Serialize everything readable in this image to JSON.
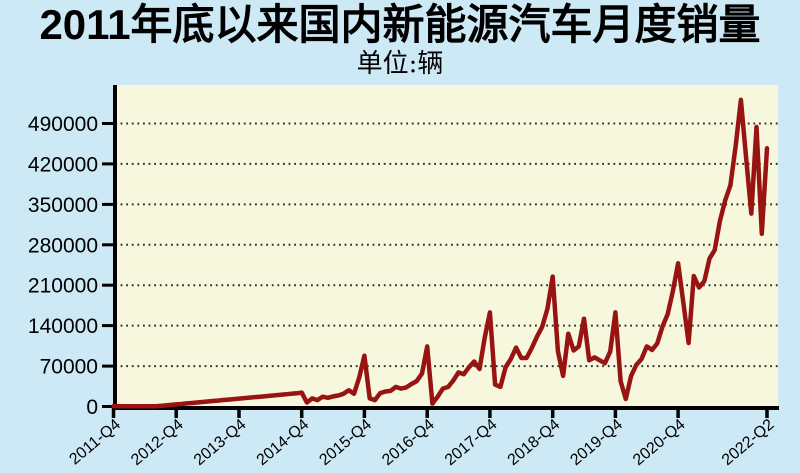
{
  "title": "2011年底以来国内新能源汽车月度销量",
  "subtitle": "单位:辆",
  "chart_data": {
    "type": "line",
    "title": "2011年底以来国内新能源汽车月度销量",
    "unit_label": "单位:辆",
    "x_start": "2011-12",
    "x_end": "2022-05",
    "monthly_values": [
      800,
      300,
      350,
      400,
      450,
      500,
      550,
      500,
      300,
      1100,
      1900,
      2800,
      3600,
      4400,
      5300,
      6100,
      7000,
      7800,
      8600,
      9500,
      10300,
      11200,
      12000,
      12800,
      13700,
      14500,
      15400,
      16200,
      17000,
      17900,
      18700,
      19600,
      20400,
      21200,
      22100,
      22900,
      24000,
      7000,
      14000,
      11000,
      17000,
      15000,
      17500,
      19000,
      22000,
      28000,
      22000,
      50000,
      88000,
      14000,
      11000,
      23000,
      26000,
      27000,
      34000,
      31000,
      33000,
      39000,
      44000,
      57000,
      104000,
      5000,
      17000,
      31000,
      34000,
      45000,
      59000,
      56000,
      68000,
      78000,
      65000,
      119000,
      163000,
      38000,
      34000,
      68000,
      82000,
      102000,
      84000,
      84000,
      101000,
      121000,
      138000,
      169000,
      225000,
      96000,
      53000,
      126000,
      97000,
      104000,
      152000,
      80000,
      85000,
      80000,
      75000,
      95000,
      163000,
      44000,
      13000,
      53000,
      72000,
      82000,
      104000,
      98000,
      109000,
      138000,
      160000,
      200000,
      248000,
      179000,
      110000,
      226000,
      206000,
      217000,
      256000,
      271000,
      321000,
      357000,
      383000,
      450000,
      531000,
      431000,
      334000,
      484000,
      299000,
      447000
    ],
    "x_ticks": [
      {
        "label": "2011-Q4",
        "month_index": 0
      },
      {
        "label": "2012-Q4",
        "month_index": 12
      },
      {
        "label": "2013-Q4",
        "month_index": 24
      },
      {
        "label": "2014-Q4",
        "month_index": 36
      },
      {
        "label": "2015-Q4",
        "month_index": 48
      },
      {
        "label": "2016-Q4",
        "month_index": 60
      },
      {
        "label": "2017-Q4",
        "month_index": 72
      },
      {
        "label": "2018-Q4",
        "month_index": 84
      },
      {
        "label": "2019-Q4",
        "month_index": 96
      },
      {
        "label": "2020-Q4",
        "month_index": 108
      },
      {
        "label": "2022-Q2",
        "month_index": 125
      }
    ],
    "y_ticks": [
      0,
      70000,
      140000,
      210000,
      280000,
      350000,
      420000,
      490000
    ],
    "ylim": [
      0,
      557000
    ],
    "grid": "dotted-horizontal",
    "legend": "none",
    "colors": {
      "line": "#971412",
      "plot_bg": "#f7f7dd",
      "page_bg": "#cde9f5",
      "axis": "#000000",
      "gridline": "#2e2e2e",
      "tick_label": "#000000"
    }
  }
}
